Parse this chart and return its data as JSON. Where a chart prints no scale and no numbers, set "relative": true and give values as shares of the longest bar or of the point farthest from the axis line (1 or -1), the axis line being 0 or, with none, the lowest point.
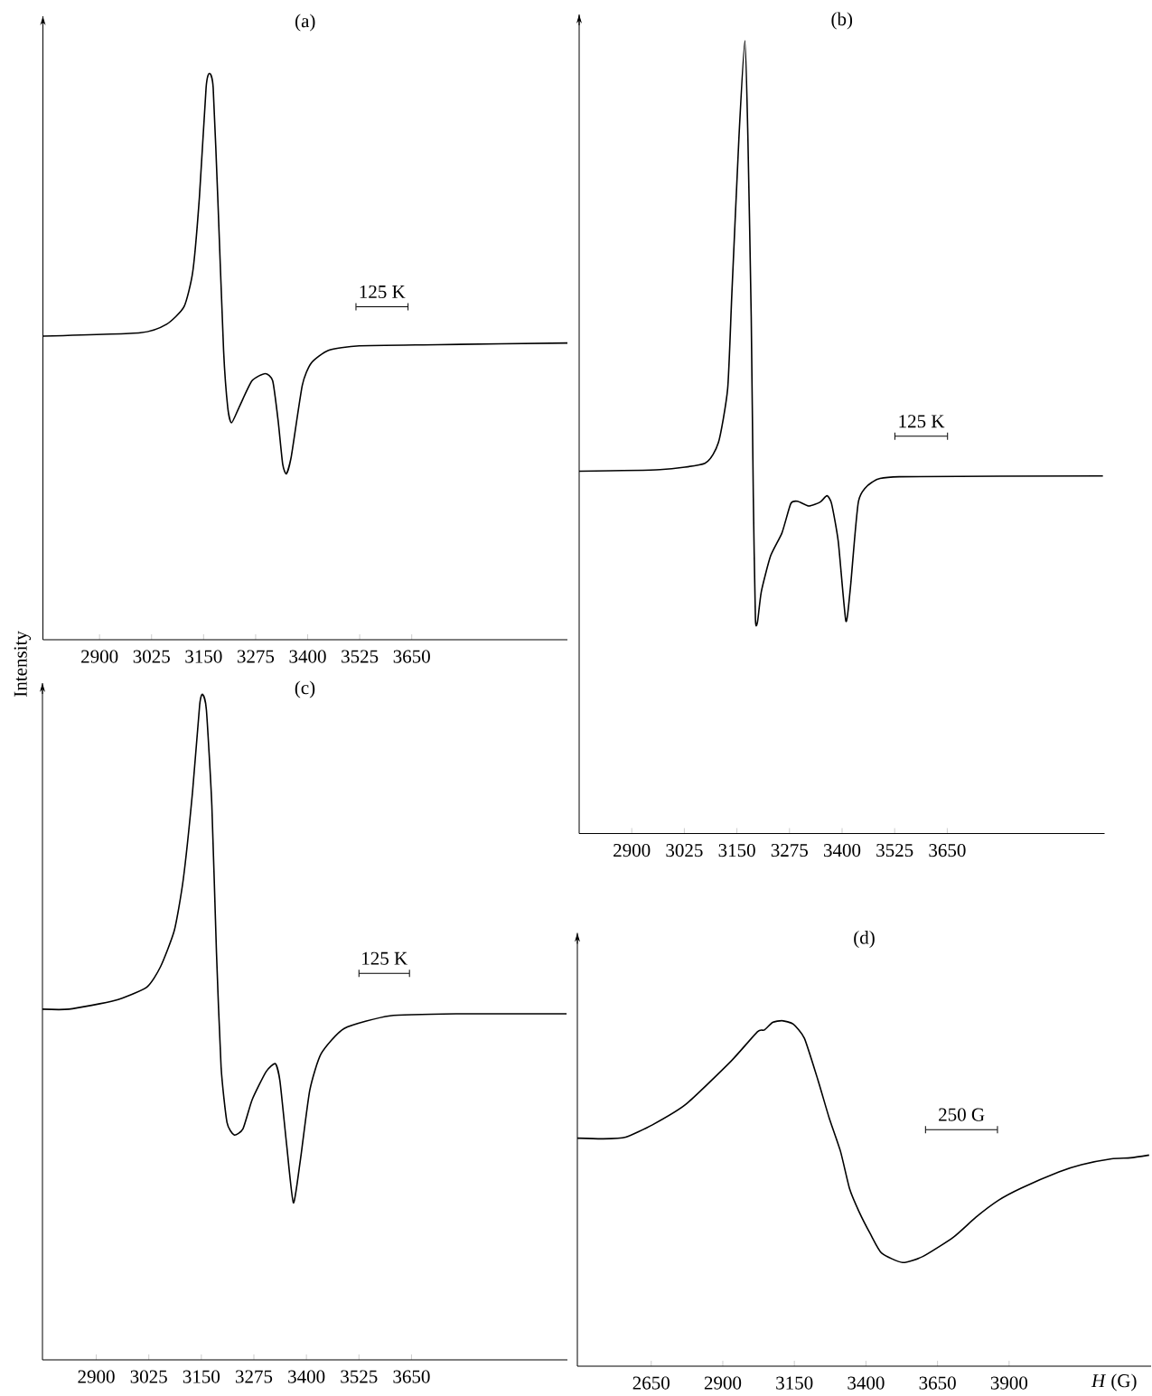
{
  "chart_data": [
    {
      "type": "line",
      "title": "(a)",
      "ylabel": "Intensity",
      "relative": true,
      "tick_labels": "x",
      "xlim": [
        2764,
        4024
      ],
      "xticks": [
        2900,
        3025,
        3150,
        3275,
        3400,
        3525,
        3650
      ],
      "annotations": [
        "125 K"
      ],
      "x": [
        2764,
        2998,
        3061,
        3103,
        3124,
        3140,
        3156,
        3164,
        3173,
        3184,
        3198,
        3208,
        3217,
        3235,
        3266,
        3298,
        3316,
        3329,
        3340,
        3349,
        3361,
        3387,
        3408,
        3450,
        3524,
        3713,
        4024
      ],
      "series": [
        {
          "color": "#000000",
          "values": [
            0.536,
            0.542,
            0.557,
            0.588,
            0.65,
            0.782,
            0.975,
            1,
            0.975,
            0.782,
            0.511,
            0.41,
            0.383,
            0.41,
            0.457,
            0.47,
            0.457,
            0.387,
            0.31,
            0.293,
            0.325,
            0.449,
            0.488,
            0.511,
            0.519,
            0.521,
            0.524
          ]
        }
      ]
    },
    {
      "type": "line",
      "title": "(b)",
      "relative": true,
      "tick_labels": "x",
      "xlim": [
        2775,
        4024
      ],
      "xticks": [
        2900,
        3025,
        3150,
        3275,
        3400,
        3525,
        3650
      ],
      "annotations": [
        "125 K"
      ],
      "x": [
        2775,
        2967,
        3074,
        3106,
        3128,
        3138,
        3155,
        3169,
        3176,
        3184,
        3189,
        3194,
        3199,
        3208,
        3230,
        3257,
        3278,
        3294,
        3321,
        3348,
        3364,
        3375,
        3391,
        3409,
        3420,
        3439,
        3471,
        3536,
        4020
      ],
      "series": [
        {
          "color": "#000000",
          "values": [
            0.457,
            0.459,
            0.467,
            0.493,
            0.561,
            0.681,
            0.88,
            1,
            0.88,
            0.652,
            0.424,
            0.271,
            0.267,
            0.305,
            0.35,
            0.379,
            0.416,
            0.419,
            0.413,
            0.418,
            0.426,
            0.416,
            0.368,
            0.268,
            0.311,
            0.419,
            0.443,
            0.45,
            0.451
          ]
        }
      ]
    },
    {
      "type": "line",
      "title": "(c)",
      "relative": true,
      "tick_labels": "x",
      "xlim": [
        2772,
        4021
      ],
      "xticks": [
        2900,
        3025,
        3150,
        3275,
        3400,
        3525,
        3650
      ],
      "annotations": [
        "125 K"
      ],
      "x": [
        2772,
        2835,
        2944,
        3020,
        3053,
        3086,
        3107,
        3129,
        3146,
        3153,
        3162,
        3175,
        3186,
        3197,
        3211,
        3228,
        3249,
        3271,
        3304,
        3326,
        3337,
        3353,
        3369,
        3386,
        3408,
        3435,
        3490,
        3599,
        3762,
        4019
      ],
      "series": [
        {
          "color": "#000000",
          "values": [
            0.527,
            0.527,
            0.54,
            0.56,
            0.591,
            0.646,
            0.722,
            0.853,
            0.984,
            1,
            0.977,
            0.833,
            0.612,
            0.44,
            0.357,
            0.338,
            0.347,
            0.391,
            0.433,
            0.445,
            0.419,
            0.323,
            0.236,
            0.302,
            0.405,
            0.46,
            0.498,
            0.517,
            0.52,
            0.52
          ]
        }
      ]
    },
    {
      "type": "line",
      "title": "(d)",
      "xlabel": "*H* (G)",
      "relative": true,
      "tick_labels": "x",
      "xlim": [
        2392,
        4396
      ],
      "xticks": [
        2650,
        2900,
        3150,
        3400,
        3650,
        3900
      ],
      "annotations": [
        "250 G"
      ],
      "x": [
        2392,
        2482,
        2561,
        2653,
        2771,
        2929,
        3021,
        3045,
        3074,
        3107,
        3146,
        3185,
        3232,
        3271,
        3311,
        3343,
        3376,
        3416,
        3455,
        3528,
        3600,
        3705,
        3784,
        3863,
        3942,
        4074,
        4153,
        4258,
        4324,
        4389
      ],
      "series": [
        {
          "color": "#000000",
          "values": [
            0.66,
            0.658,
            0.663,
            0.698,
            0.758,
            0.883,
            0.968,
            0.973,
            0.995,
            1,
            0.99,
            0.949,
            0.829,
            0.72,
            0.622,
            0.513,
            0.447,
            0.382,
            0.327,
            0.3,
            0.318,
            0.373,
            0.431,
            0.48,
            0.515,
            0.562,
            0.583,
            0.6,
            0.603,
            0.611
          ]
        }
      ]
    }
  ]
}
